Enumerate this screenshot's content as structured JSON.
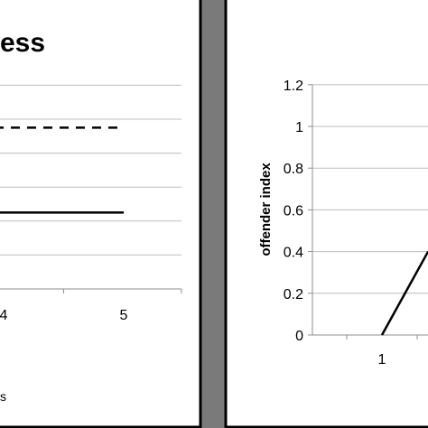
{
  "chart_data": [
    {
      "type": "line",
      "title": "ess",
      "xlabel": "s",
      "ylabel": "",
      "x_ticks": [
        "4",
        "5"
      ],
      "grid": true,
      "series": [
        {
          "style": "dashed",
          "x": [
            0,
            4,
            5
          ],
          "y": [
            0.95,
            0.95,
            0.95
          ]
        },
        {
          "style": "solid",
          "x": [
            0,
            4,
            5
          ],
          "y": [
            0.45,
            0.45,
            0.45
          ]
        }
      ],
      "ylim": [
        0,
        1.2
      ]
    },
    {
      "type": "line",
      "title": "",
      "xlabel": "",
      "ylabel": "offender index",
      "ylim": [
        0,
        1.2
      ],
      "y_ticks": [
        "0",
        "0.2",
        "0.4",
        "0.6",
        "0.8",
        "1",
        "1.2"
      ],
      "x_ticks": [
        "1"
      ],
      "grid": true,
      "series": [
        {
          "style": "solid",
          "x": [
            1,
            1.7
          ],
          "y": [
            0,
            0.4
          ]
        }
      ]
    }
  ]
}
